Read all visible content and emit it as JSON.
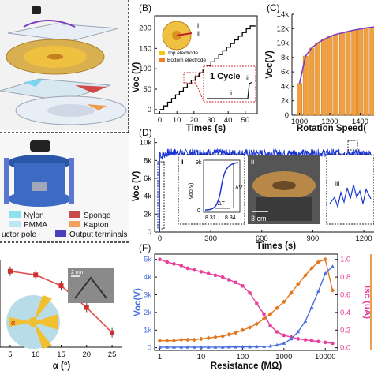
{
  "panels": {
    "B": "(B)",
    "C": "(C)",
    "D": "(D)",
    "F": "(F)"
  },
  "left_panel": {
    "legend": [
      {
        "label": "Nylon",
        "color": "#8fe0ef"
      },
      {
        "label": "Sponge",
        "color": "#c94a4a"
      },
      {
        "label": "PMMA",
        "color": "#bfe6f5"
      },
      {
        "label": "Kapton",
        "color": "#f0a060"
      },
      {
        "label": "uctor pole",
        "color": "#ffffff"
      },
      {
        "label": "Output terminals",
        "color": "#4a3fbf"
      }
    ]
  },
  "chartB": {
    "ylabel": "Voc (V)",
    "xlabel": "Times (s)",
    "inset_marks": {
      "i": "i",
      "ii": "ii"
    },
    "legend": [
      {
        "label": "Top electrode",
        "color": "#f5c518"
      },
      {
        "label": "Bottom electrode",
        "color": "#f08020"
      }
    ],
    "callout": "1 Cycle",
    "callout_marks": {
      "i": "i",
      "ii": "ii"
    },
    "x_ticks": [
      "0",
      "10",
      "20",
      "30",
      "40",
      "50"
    ],
    "y_ticks": [
      "0",
      "50",
      "100",
      "150",
      "200"
    ]
  },
  "chartC": {
    "ylabel": "Voc(V)",
    "xlabel": "Rotation Speed(",
    "x_ticks": [
      "1000",
      "1200",
      "1400",
      "1600"
    ],
    "y_ticks": [
      "0",
      "2k",
      "4k",
      "6k",
      "8k",
      "10k",
      "12k",
      "14k"
    ]
  },
  "chartD": {
    "ylabel": "Voc (V)",
    "xlabel": "Times (s)",
    "x_ticks": [
      "0",
      "300",
      "600",
      "900",
      "1200"
    ],
    "y_ticks": [
      "0",
      "2k",
      "4k",
      "6k",
      "8k",
      "10k"
    ],
    "inset_i": {
      "mark": "i",
      "ylabel": "Voc(V)",
      "ytop": "9k",
      "ybottom": "0",
      "x0": "8.31",
      "x1": "8.34",
      "dT": "ΔT",
      "dV": "ΔV"
    },
    "inset_ii": {
      "mark": "ii",
      "scale": "3 cm"
    },
    "inset_iii": {
      "mark": "iii"
    }
  },
  "chartE": {
    "xlabel": "α (°)",
    "x_ticks": [
      "5",
      "10",
      "15",
      "20",
      "25"
    ],
    "photo_scale": "2 mm",
    "alpha_mark": "α"
  },
  "chartF": {
    "ylabel_left": "Voc(V)",
    "ylabel_right": "Isc (uA)",
    "xlabel": "Resistance (MΩ)",
    "x_ticks": [
      "1",
      "10",
      "100",
      "1000",
      "10000"
    ],
    "y_ticks_left": [
      "0",
      "1k",
      "2k",
      "3k",
      "4k",
      "5k"
    ],
    "y_ticks_right": [
      "0.0",
      "0.2",
      "0.4",
      "0.6",
      "0.8",
      "1.0"
    ]
  },
  "chart_data": [
    {
      "type": "line",
      "title": "",
      "xlabel": "Times (s)",
      "ylabel": "Voc (V)",
      "xlim": [
        -3,
        57
      ],
      "ylim": [
        -10,
        230
      ],
      "series": [
        {
          "color": "#000000",
          "step": true,
          "x": [
            0,
            2.3,
            4.6,
            6.9,
            9.2,
            11.5,
            13.8,
            16.1,
            18.4,
            20.7,
            23.0,
            25.3,
            27.6,
            29.9,
            32.2,
            34.5,
            36.8,
            39.1,
            41.4,
            43.7,
            46.0,
            48.3,
            50.6,
            52.9
          ],
          "y": [
            0,
            9,
            18,
            27,
            36,
            45,
            54,
            63,
            72,
            81,
            90,
            99,
            108,
            117,
            126,
            135,
            144,
            153,
            162,
            171,
            180,
            189,
            198,
            205
          ]
        }
      ]
    },
    {
      "type": "bar",
      "title": "",
      "xlabel": "Rotation Speed(",
      "ylabel": "Voc(V)",
      "xlim": [
        950,
        1700
      ],
      "ylim": [
        0,
        14000
      ],
      "x": [
        1000,
        1040,
        1080,
        1120,
        1160,
        1200,
        1240,
        1280,
        1320,
        1360,
        1400,
        1440,
        1480,
        1520,
        1560,
        1600,
        1640,
        1680
      ],
      "values": [
        4400,
        8200,
        9300,
        10000,
        10500,
        10900,
        11200,
        11400,
        11600,
        11800,
        11950,
        12100,
        12200,
        12300,
        12400,
        12450,
        12500,
        12550
      ],
      "series": [
        {
          "color": "#f0a040",
          "values": [
            4400,
            8200,
            9300,
            10000,
            10500,
            10900,
            11200,
            11400,
            11600,
            11800,
            11950,
            12100,
            12200,
            12300,
            12400,
            12450,
            12500,
            12550
          ]
        }
      ]
    },
    {
      "type": "line",
      "title": "",
      "xlabel": "Times (s)",
      "ylabel": "Voc (V)",
      "xlim": [
        -30,
        1260
      ],
      "ylim": [
        0,
        10500
      ],
      "series": [
        {
          "color": "#1a35d6",
          "x": [
            0,
            10,
            20,
            40,
            80,
            150,
            250,
            400,
            600,
            800,
            1000,
            1100,
            1200
          ],
          "y": [
            9000,
            8400,
            8600,
            8800,
            8900,
            8800,
            8900,
            8800,
            8800,
            8800,
            8850,
            8800,
            8750
          ]
        }
      ]
    },
    {
      "type": "line",
      "title": "",
      "xlabel": "α (°)",
      "ylabel": "",
      "xlim": [
        3,
        27
      ],
      "ylim": [
        0,
        1.2
      ],
      "series": [
        {
          "color": "#e05050",
          "x": [
            5,
            10,
            15,
            20,
            25
          ],
          "y": [
            1.05,
            1.0,
            0.85,
            0.55,
            0.2
          ]
        }
      ]
    },
    {
      "type": "line",
      "title": "",
      "xlabel": "Resistance (MΩ)",
      "ylabel": "Voc(V)",
      "xscale": "log",
      "xlim": [
        0.75,
        20000
      ],
      "ylim": [
        -150,
        5300
      ],
      "y2lim": [
        -0.03,
        1.06
      ],
      "y2label": "Isc (uA)",
      "series": [
        {
          "color": "#e8409a",
          "axis": "right",
          "x": [
            1,
            1.5,
            2.2,
            3.3,
            4.7,
            6.8,
            10,
            15,
            22,
            33,
            47,
            68,
            100,
            150,
            220,
            330,
            470,
            680,
            1000,
            1500,
            2200,
            3300,
            4700,
            6800,
            10000,
            15000
          ],
          "y": [
            1.0,
            0.97,
            0.95,
            0.93,
            0.9,
            0.88,
            0.86,
            0.84,
            0.82,
            0.8,
            0.77,
            0.74,
            0.7,
            0.62,
            0.5,
            0.38,
            0.25,
            0.18,
            0.14,
            0.12,
            0.1,
            0.09,
            0.08,
            0.07,
            0.06,
            0.05
          ]
        },
        {
          "color": "#e07820",
          "axis": "right",
          "x": [
            1,
            1.5,
            2.2,
            3.3,
            4.7,
            6.8,
            10,
            15,
            22,
            33,
            47,
            68,
            100,
            150,
            220,
            330,
            470,
            680,
            1000,
            1500,
            2200,
            3300,
            4700,
            6800,
            10000,
            15000
          ],
          "y": [
            0.08,
            0.08,
            0.08,
            0.09,
            0.09,
            0.09,
            0.1,
            0.11,
            0.12,
            0.13,
            0.15,
            0.17,
            0.2,
            0.23,
            0.27,
            0.33,
            0.38,
            0.45,
            0.52,
            0.62,
            0.72,
            0.82,
            0.9,
            0.97,
            1.0,
            0.65
          ]
        },
        {
          "color": "#4a6fe0",
          "axis": "left",
          "x": [
            1,
            1.5,
            2.2,
            3.3,
            4.7,
            6.8,
            10,
            15,
            22,
            33,
            47,
            68,
            100,
            150,
            220,
            330,
            470,
            680,
            1000,
            1500,
            2200,
            3300,
            4700,
            6800,
            10000,
            15000
          ],
          "y": [
            30,
            30,
            30,
            30,
            30,
            30,
            30,
            30,
            30,
            30,
            40,
            40,
            50,
            50,
            60,
            70,
            90,
            150,
            250,
            500,
            900,
            1500,
            2300,
            3200,
            4200,
            4600
          ]
        }
      ]
    }
  ]
}
